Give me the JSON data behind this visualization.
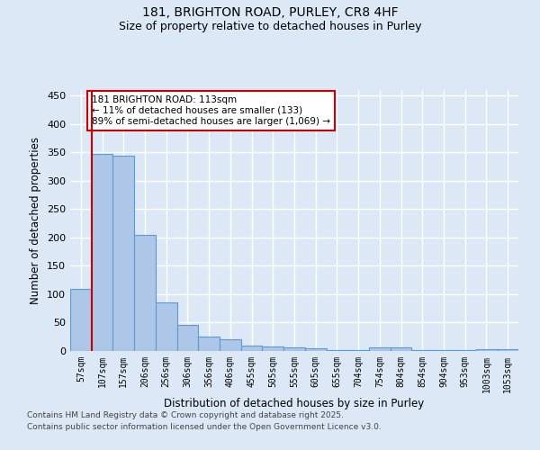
{
  "title1": "181, BRIGHTON ROAD, PURLEY, CR8 4HF",
  "title2": "Size of property relative to detached houses in Purley",
  "xlabel": "Distribution of detached houses by size in Purley",
  "ylabel": "Number of detached properties",
  "categories": [
    "57sqm",
    "107sqm",
    "157sqm",
    "206sqm",
    "256sqm",
    "306sqm",
    "356sqm",
    "406sqm",
    "455sqm",
    "505sqm",
    "555sqm",
    "605sqm",
    "655sqm",
    "704sqm",
    "754sqm",
    "804sqm",
    "854sqm",
    "904sqm",
    "953sqm",
    "1003sqm",
    "1053sqm"
  ],
  "values": [
    110,
    348,
    345,
    204,
    85,
    46,
    25,
    21,
    10,
    8,
    6,
    5,
    1,
    1,
    7,
    7,
    2,
    1,
    1,
    3,
    3
  ],
  "bar_color": "#aec6e8",
  "bar_edge_color": "#5b9bd5",
  "vline_x": 1,
  "vline_color": "#cc0000",
  "annotation_text": "181 BRIGHTON ROAD: 113sqm\n← 11% of detached houses are smaller (133)\n89% of semi-detached houses are larger (1,069) →",
  "annotation_box_color": "#ffffff",
  "annotation_box_edge": "#cc0000",
  "ylim": [
    0,
    460
  ],
  "yticks": [
    0,
    50,
    100,
    150,
    200,
    250,
    300,
    350,
    400,
    450
  ],
  "footnote1": "Contains HM Land Registry data © Crown copyright and database right 2025.",
  "footnote2": "Contains public sector information licensed under the Open Government Licence v3.0.",
  "bg_color": "#dce8f5",
  "grid_color": "#ffffff"
}
